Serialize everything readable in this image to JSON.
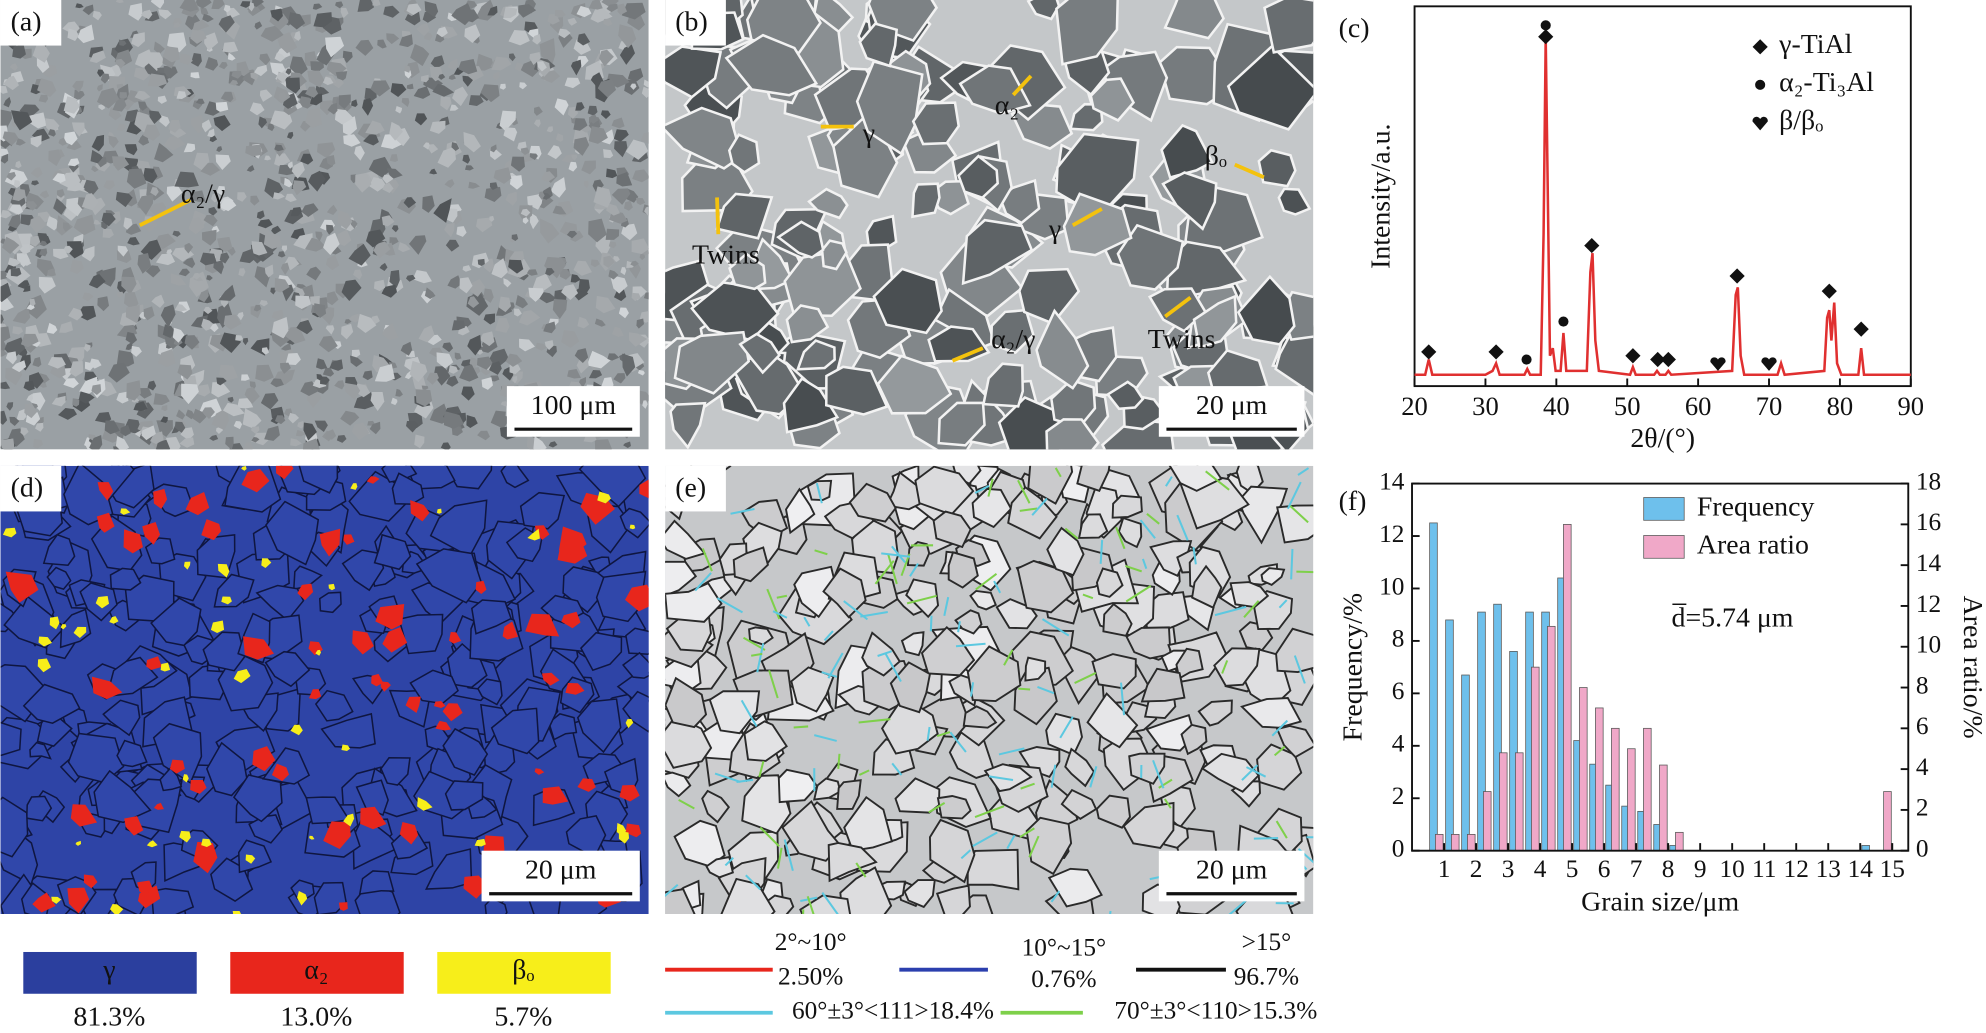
{
  "panels": [
    {
      "label": "(a)",
      "annotations": [
        "α₂/γ"
      ],
      "scale_bar": "100 μm"
    },
    {
      "label": "(b)",
      "annotations": [
        "γ",
        "α₂",
        "βₒ",
        "Twins",
        "γ",
        "α₂/γ",
        "Twins"
      ],
      "scale_bar": "20 μm"
    },
    {
      "label": "(d)",
      "annotations": [],
      "scale_bar": "20 μm"
    },
    {
      "label": "(e)",
      "annotations": [],
      "scale_bar": "20 μm"
    }
  ],
  "phase_legend": [
    {
      "name": "γ",
      "color": "#2b3f9e",
      "fraction": "81.3%"
    },
    {
      "name": "α₂",
      "color": "#e8261c",
      "fraction": "13.0%"
    },
    {
      "name": "βₒ",
      "color": "#f7ee1a",
      "fraction": "5.7%"
    }
  ],
  "boundary_legend": [
    {
      "range": "2°~10°",
      "fraction": "2.50%",
      "color": "#e8261c"
    },
    {
      "range": "10°~15°",
      "fraction": "0.76%",
      "color": "#2b3fae"
    },
    {
      "range": ">15°",
      "fraction": "96.7%",
      "color": "#111111"
    },
    {
      "range": "60°±3°<111>18.4%",
      "color": "#5cc8e0"
    },
    {
      "range": "70°±3°<110>15.3%",
      "color": "#7ed04a"
    }
  ],
  "chart_data": [
    {
      "type": "line",
      "label": "(c)",
      "x_label": "2θ/(°)",
      "y_label": "Intensity/a.u.",
      "xlim": [
        20,
        90
      ],
      "xticks": [
        20,
        30,
        40,
        50,
        60,
        70,
        80,
        90
      ],
      "ylim": [
        0,
        100
      ],
      "series": [
        {
          "color": "#e03030",
          "x": [
            20,
            21.5,
            22,
            22.5,
            30,
            31,
            31.5,
            32,
            35.5,
            35.9,
            36.3,
            37.8,
            38.2,
            38.5,
            38.8,
            39.1,
            39.5,
            39.9,
            40.6,
            41,
            41.4,
            44.3,
            44.8,
            45.1,
            45.5,
            46,
            50.4,
            50.8,
            51.2,
            53.8,
            54.2,
            54.6,
            55.4,
            55.8,
            56.2,
            64.8,
            65.3,
            65.6,
            66,
            66.5,
            71.2,
            71.7,
            72.2,
            77.8,
            78.2,
            78.5,
            78.8,
            79.2,
            79.6,
            80.2,
            82.6,
            83,
            83.4,
            90
          ],
          "values": [
            3,
            3,
            7,
            3,
            3,
            4,
            6,
            3,
            3,
            4.5,
            3,
            3,
            40,
            92,
            50,
            8,
            10,
            4,
            4,
            14,
            4,
            4,
            30,
            35,
            12,
            4,
            3,
            5,
            3,
            3,
            4,
            3,
            3,
            4,
            3,
            4,
            24,
            26,
            8,
            3,
            3,
            6,
            3,
            4,
            18,
            20,
            12,
            22,
            6,
            3,
            3,
            10,
            3,
            3
          ]
        }
      ],
      "markers": [
        {
          "name": "γ-TiAl",
          "symbol": "diamond",
          "color": "#111111",
          "x": [
            22,
            31.5,
            38.5,
            45,
            50.8,
            54.3,
            55.8,
            65.5,
            78.5,
            83
          ],
          "values": [
            9,
            9,
            92,
            37,
            8,
            7,
            7,
            29,
            25,
            15
          ]
        },
        {
          "name": "α₂-Ti₃Al",
          "symbol": "dot",
          "color": "#111111",
          "x": [
            35.8,
            38.5,
            41
          ],
          "values": [
            7,
            95,
            17
          ]
        },
        {
          "name": "β/βₒ",
          "symbol": "heart",
          "color": "#111111",
          "x": [
            62.8,
            70
          ],
          "values": [
            6,
            6
          ]
        }
      ]
    },
    {
      "type": "bar",
      "label": "(f)",
      "x_label": "Grain size/μm",
      "y_label": "Frequency/%",
      "y2_label": "Area ratio/%",
      "annotation": "d̅=5.74 μm",
      "xlim": [
        0,
        15.5
      ],
      "xticks": [
        1,
        2,
        3,
        4,
        5,
        6,
        7,
        8,
        9,
        10,
        11,
        12,
        13,
        14,
        15
      ],
      "ylim": [
        0,
        14
      ],
      "yticks": [
        0,
        2,
        4,
        6,
        8,
        10,
        12,
        14
      ],
      "y2lim": [
        0,
        18
      ],
      "y2ticks": [
        0,
        2,
        4,
        6,
        8,
        10,
        12,
        14,
        16,
        18
      ],
      "x": [
        0.75,
        1.25,
        1.75,
        2.25,
        2.75,
        3.25,
        3.75,
        4.25,
        4.75,
        5.25,
        5.75,
        6.25,
        6.75,
        7.25,
        7.75,
        8.25,
        8.75,
        9.25,
        9.75,
        10.25,
        10.75,
        11.25,
        11.75,
        12.25,
        12.75,
        13.25,
        13.75,
        14.25,
        14.75
      ],
      "series": [
        {
          "name": "Frequency",
          "color": "#6ec0ec",
          "values": [
            12.5,
            8.8,
            6.7,
            9.1,
            9.4,
            7.6,
            9.1,
            9.1,
            10.4,
            4.2,
            3.3,
            2.5,
            1.7,
            1.5,
            1.0,
            0.2,
            0,
            0,
            0,
            0,
            0,
            0,
            0,
            0,
            0,
            0,
            0,
            0.2,
            0
          ]
        },
        {
          "name": "Area ratio",
          "color": "#f0a8c8",
          "axis": "y2",
          "values": [
            0.8,
            0.8,
            0.8,
            2.9,
            4.8,
            4.8,
            9.0,
            11.0,
            16.0,
            8.0,
            7.0,
            6.0,
            5.0,
            6.0,
            4.2,
            0.9,
            0,
            0,
            0,
            0,
            0,
            0,
            0,
            0,
            0,
            0,
            0,
            0,
            2.9
          ]
        }
      ]
    }
  ]
}
